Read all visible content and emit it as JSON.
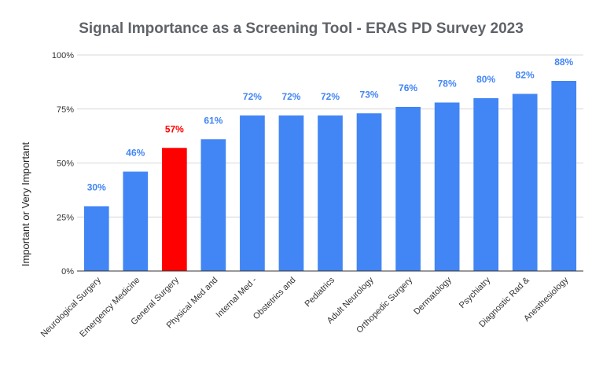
{
  "chart_data": {
    "type": "bar",
    "title": "Signal Importance as a Screening Tool - ERAS PD Survey 2023",
    "xlabel": "",
    "ylabel": "Important or Very Important",
    "ylim": [
      0,
      100
    ],
    "y_ticks": [
      "0%",
      "25%",
      "50%",
      "75%",
      "100%"
    ],
    "grid": true,
    "categories": [
      "Neurological Surgery",
      "Emergency Medicine",
      "General Surgery",
      "Physical Med and",
      "Internal Med -",
      "Obstetrics and",
      "Pediatrics",
      "Adult Neurology",
      "Orthopedic Surgery",
      "Dermatology",
      "Psychiatry",
      "Diagnostic Rad &",
      "Anesthesiology"
    ],
    "values": [
      30,
      46,
      57,
      61,
      72,
      72,
      72,
      73,
      76,
      78,
      80,
      82,
      88
    ],
    "data_labels": [
      "30%",
      "46%",
      "57%",
      "61%",
      "72%",
      "72%",
      "72%",
      "73%",
      "76%",
      "78%",
      "80%",
      "82%",
      "88%"
    ],
    "colors": {
      "default_bar": "#4285f4",
      "highlight_bar": "#ff0000",
      "default_label": "#4285f4",
      "highlight_label": "#ff0000"
    },
    "highlight_index": 2
  }
}
